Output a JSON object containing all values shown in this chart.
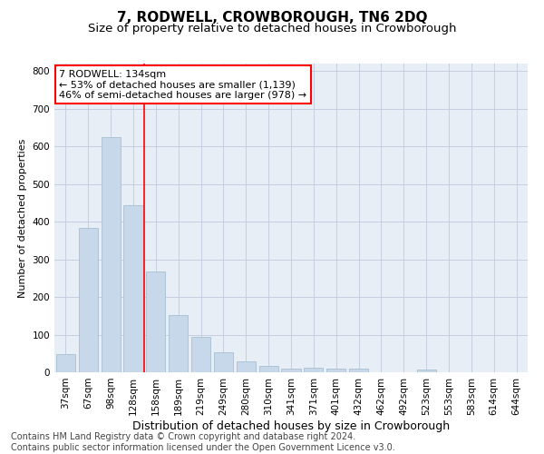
{
  "title": "7, RODWELL, CROWBOROUGH, TN6 2DQ",
  "subtitle": "Size of property relative to detached houses in Crowborough",
  "xlabel": "Distribution of detached houses by size in Crowborough",
  "ylabel": "Number of detached properties",
  "categories": [
    "37sqm",
    "67sqm",
    "98sqm",
    "128sqm",
    "158sqm",
    "189sqm",
    "219sqm",
    "249sqm",
    "280sqm",
    "310sqm",
    "341sqm",
    "371sqm",
    "401sqm",
    "432sqm",
    "462sqm",
    "492sqm",
    "523sqm",
    "553sqm",
    "583sqm",
    "614sqm",
    "644sqm"
  ],
  "values": [
    48,
    383,
    625,
    443,
    268,
    153,
    95,
    52,
    28,
    17,
    10,
    13,
    10,
    10,
    0,
    0,
    8,
    0,
    0,
    0,
    0
  ],
  "bar_color": "#c8d8eb",
  "bar_edge_color": "#a8bfd0",
  "grid_color": "#c5cfe0",
  "background_color": "#e8eef6",
  "red_line_index": 3,
  "annotation_line1": "7 RODWELL: 134sqm",
  "annotation_line2": "← 53% of detached houses are smaller (1,139)",
  "annotation_line3": "46% of semi-detached houses are larger (978) →",
  "ylim": [
    0,
    820
  ],
  "yticks": [
    0,
    100,
    200,
    300,
    400,
    500,
    600,
    700,
    800
  ],
  "footer": "Contains HM Land Registry data © Crown copyright and database right 2024.\nContains public sector information licensed under the Open Government Licence v3.0.",
  "title_fontsize": 11,
  "subtitle_fontsize": 9.5,
  "xlabel_fontsize": 9,
  "ylabel_fontsize": 8,
  "tick_fontsize": 7.5,
  "annotation_fontsize": 8,
  "footer_fontsize": 7
}
